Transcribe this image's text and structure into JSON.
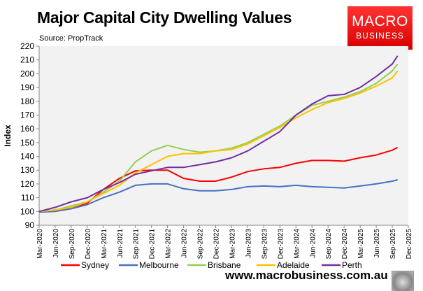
{
  "title": "Major Capital City Dwelling Values",
  "source": "Source: PropTrack",
  "logo": {
    "line1": "MACRO",
    "line2": "BUSINESS"
  },
  "url": "www.macrobusiness.com.au",
  "chart_data": {
    "type": "line",
    "title": "Major Capital City Dwelling Values",
    "ylabel": "Index",
    "xlabel": "",
    "ylim": [
      90,
      220
    ],
    "yticks": [
      90,
      100,
      110,
      120,
      130,
      140,
      150,
      160,
      170,
      180,
      190,
      200,
      210,
      220
    ],
    "xticks": [
      "Mar-2020",
      "Jun-2020",
      "Sep-2020",
      "Dec-2020",
      "Mar-2021",
      "Jun-2021",
      "Sep-2021",
      "Dec-2021",
      "Mar-2022",
      "Jun-2022",
      "Sep-2022",
      "Dec-2022",
      "Mar-2023",
      "Jun-2023",
      "Sep-2023",
      "Dec-2023",
      "Mar-2024",
      "Jun-2024",
      "Sep-2024",
      "Dec-2024",
      "Mar-2025",
      "Jun-2025",
      "Sep-2025",
      "Dec-2025"
    ],
    "grid": false,
    "legend": "bottom",
    "x": [
      "2020-03",
      "2020-06",
      "2020-09",
      "2020-12",
      "2021-03",
      "2021-06",
      "2021-09",
      "2021-12",
      "2022-03",
      "2022-06",
      "2022-09",
      "2022-12",
      "2023-03",
      "2023-06",
      "2023-09",
      "2023-12",
      "2024-03",
      "2024-06",
      "2024-09",
      "2024-12",
      "2025-03",
      "2025-06",
      "2025-09",
      "2025-10"
    ],
    "series": [
      {
        "name": "Sydney",
        "color": "#ff0000",
        "values": [
          100,
          101,
          102,
          106,
          116,
          124,
          129.5,
          130,
          130,
          124,
          122,
          122,
          125,
          129,
          131,
          132,
          135,
          137,
          137,
          136.5,
          139,
          141,
          144.5,
          146.5
        ]
      },
      {
        "name": "Melbourne",
        "color": "#4472c4",
        "values": [
          99.5,
          100,
          102,
          105,
          110,
          114,
          119,
          120,
          120,
          116.5,
          115,
          115,
          116,
          118,
          118.5,
          118,
          119,
          118,
          117.5,
          117,
          118.5,
          120,
          122,
          123
        ]
      },
      {
        "name": "Brisbane",
        "color": "#92d050",
        "values": [
          100,
          101,
          104,
          107,
          114,
          122,
          136,
          144,
          148,
          145,
          143,
          144,
          146,
          150,
          156,
          162,
          170,
          177,
          180,
          183,
          187,
          193,
          202,
          207
        ]
      },
      {
        "name": "Adelaide",
        "color": "#ffc000",
        "values": [
          100,
          101,
          103,
          107,
          113,
          119,
          128,
          134,
          140,
          142,
          142,
          144,
          145,
          149,
          155,
          161,
          168,
          174,
          179,
          182,
          186,
          191,
          197,
          202
        ]
      },
      {
        "name": "Perth",
        "color": "#7030a0",
        "values": [
          100,
          103,
          107,
          110,
          116,
          121,
          127,
          129.5,
          132,
          132,
          134,
          136,
          139,
          144,
          151,
          158,
          170,
          178,
          184,
          185,
          190,
          198,
          207,
          213
        ]
      }
    ]
  }
}
